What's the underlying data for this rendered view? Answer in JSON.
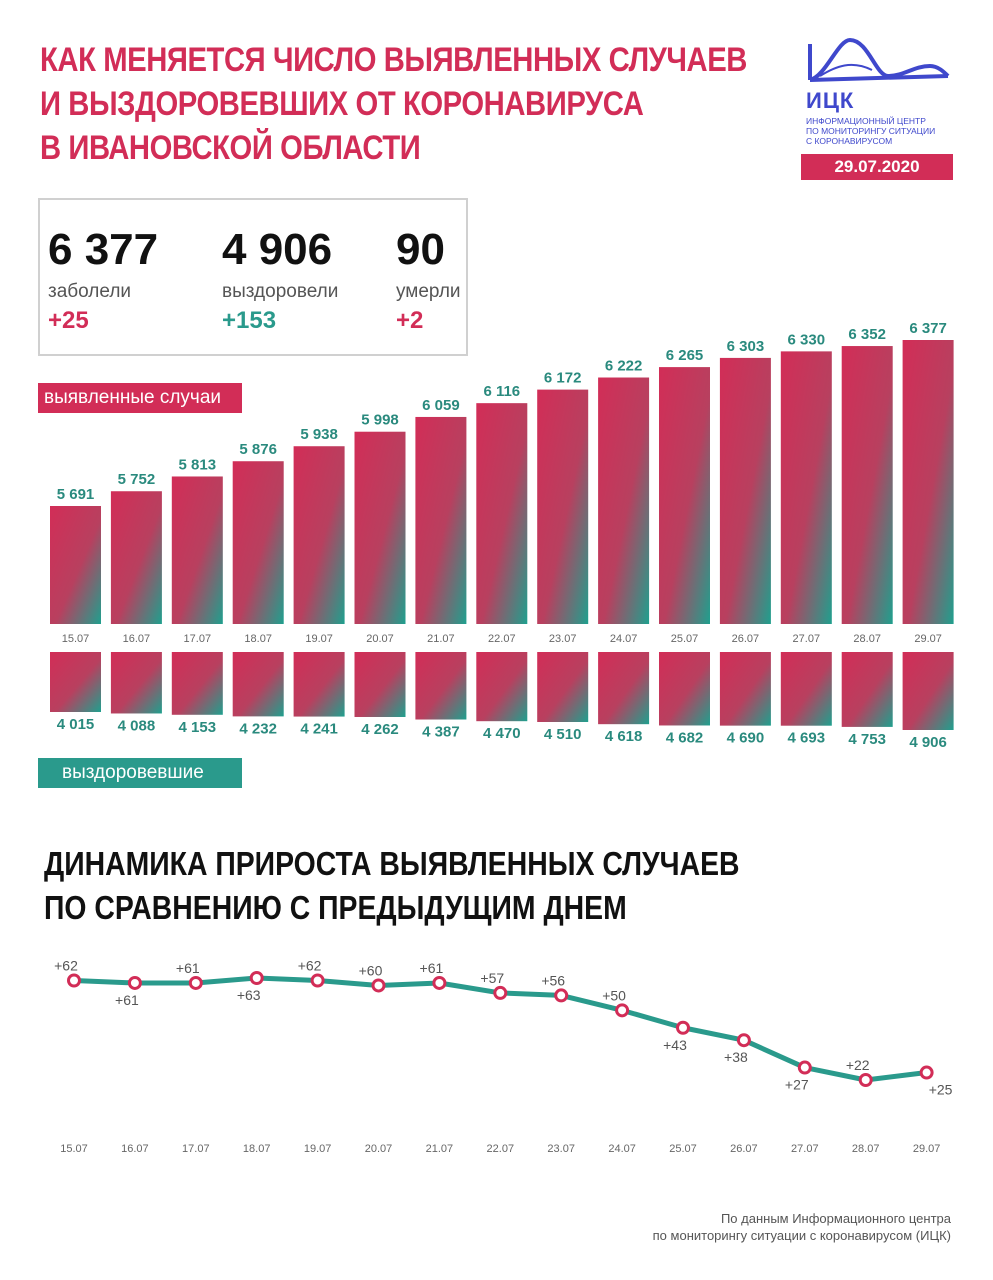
{
  "header": {
    "title_lines": [
      "КАК МЕНЯЕТСЯ ЧИСЛО ВЫЯВЛЕННЫХ СЛУЧАЕВ",
      "И ВЫЗДОРОВЕВШИХ ОТ КОРОНАВИРУСА",
      "В ИВАНОВСКОЙ ОБЛАСТИ"
    ],
    "logo_abbr": "ИЦК",
    "logo_lines": [
      "ИНФОРМАЦИОННЫЙ ЦЕНТР",
      "ПО МОНИТОРИНГУ СИТУАЦИИ",
      "С КОРОНАВИРУСОМ"
    ],
    "date": "29.07.2020",
    "logo_color": "#3f48cc"
  },
  "stats": [
    {
      "value": "6 377",
      "label": "заболели",
      "delta": "+25",
      "color": "#d22d57"
    },
    {
      "value": "4 906",
      "label": "выздоровели",
      "delta": "+153",
      "color": "#2a9a8c"
    },
    {
      "value": "90",
      "label": "умерли",
      "delta": "+2",
      "color": "#d22d57"
    }
  ],
  "tags": {
    "cases": "выявленные случаи",
    "recovered": "выздоровевшие"
  },
  "subtitle_lines": [
    "ДИНАМИКА ПРИРОСТА ВЫЯВЛЕННЫХ СЛУЧАЕВ",
    "ПО СРАВНЕНИЮ С ПРЕДЫДУЩИМ ДНЕМ"
  ],
  "footer_lines": [
    "По данным Информационного центра",
    "по мониторингу ситуации с коронавирусом (ИЦК)"
  ],
  "colors": {
    "red": "#d22d57",
    "teal": "#2a9a8c",
    "label_teal": "#2a8a7e"
  },
  "chart_data": [
    {
      "type": "bar",
      "categories": [
        "15.07",
        "16.07",
        "17.07",
        "18.07",
        "19.07",
        "20.07",
        "21.07",
        "22.07",
        "23.07",
        "24.07",
        "25.07",
        "26.07",
        "27.07",
        "28.07",
        "29.07"
      ],
      "series": [
        {
          "name": "выявленные случаи",
          "values": [
            5691,
            5752,
            5813,
            5876,
            5938,
            5998,
            6059,
            6116,
            6172,
            6222,
            6265,
            6303,
            6330,
            6352,
            6377
          ],
          "labels": [
            "5 691",
            "5 752",
            "5 813",
            "5 876",
            "5 938",
            "5 998",
            "6 059",
            "6 116",
            "6 172",
            "6 222",
            "6 265",
            "6 303",
            "6 330",
            "6 352",
            "6 377"
          ]
        },
        {
          "name": "выздоровевшие",
          "values": [
            4015,
            4088,
            4153,
            4232,
            4241,
            4262,
            4387,
            4470,
            4510,
            4618,
            4682,
            4690,
            4693,
            4753,
            4906
          ],
          "labels": [
            "4 015",
            "4 088",
            "4 153",
            "4 232",
            "4 241",
            "4 262",
            "4 387",
            "4 470",
            "4 510",
            "4 618",
            "4 682",
            "4 690",
            "4 693",
            "4 753",
            "4 906"
          ]
        }
      ]
    },
    {
      "type": "line",
      "categories": [
        "15.07",
        "16.07",
        "17.07",
        "18.07",
        "19.07",
        "20.07",
        "21.07",
        "22.07",
        "23.07",
        "24.07",
        "25.07",
        "26.07",
        "27.07",
        "28.07",
        "29.07"
      ],
      "values": [
        62,
        61,
        61,
        63,
        62,
        60,
        61,
        57,
        56,
        50,
        43,
        38,
        27,
        22,
        25
      ],
      "labels": [
        "+62",
        "+61",
        "+61",
        "+63",
        "+62",
        "+60",
        "+61",
        "+57",
        "+56",
        "+50",
        "+43",
        "+38",
        "+27",
        "+22",
        "+25"
      ],
      "ylim": [
        0,
        70
      ]
    }
  ]
}
